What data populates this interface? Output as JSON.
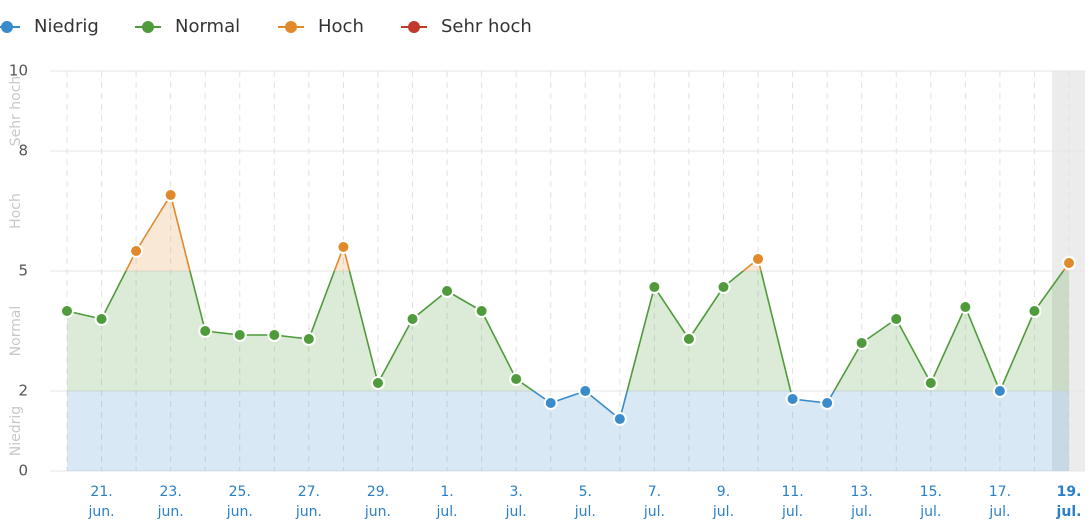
{
  "chart_data": {
    "type": "line",
    "zones": [
      {
        "name": "Niedrig",
        "from": 0,
        "to": 2,
        "color": "#3a8bc9"
      },
      {
        "name": "Normal",
        "from": 2,
        "to": 5,
        "color": "#4f9a3b"
      },
      {
        "name": "Hoch",
        "from": 5,
        "to": 8,
        "color": "#e08a2b"
      },
      {
        "name": "Sehr hoch",
        "from": 8,
        "to": 10,
        "color": "#c0392b"
      }
    ],
    "categories": [
      null,
      "21. jun.",
      null,
      "23. jun.",
      null,
      "25. jun.",
      null,
      "27. jun.",
      null,
      "29. jun.",
      null,
      "1. jul.",
      null,
      "3. jul.",
      null,
      "5. jul.",
      null,
      "7. jul.",
      null,
      "9. jul.",
      null,
      "11. jul.",
      null,
      "13. jul.",
      null,
      "15. jul.",
      null,
      "17. jul.",
      null,
      "19. jul."
    ],
    "series": [
      {
        "values": [
          4.0,
          3.8,
          5.5,
          6.9,
          3.5,
          3.4,
          3.4,
          3.3,
          5.6,
          2.2,
          3.8,
          4.5,
          4.0,
          2.3,
          1.7,
          2.0,
          1.3,
          4.6,
          3.3,
          4.6,
          5.3,
          1.8,
          1.7,
          3.2,
          3.8,
          2.2,
          4.1,
          2.0,
          4.0,
          5.2
        ]
      }
    ],
    "ylim": [
      0,
      10
    ],
    "yticks": [
      0,
      2,
      5,
      8,
      10
    ],
    "grid": true
  }
}
